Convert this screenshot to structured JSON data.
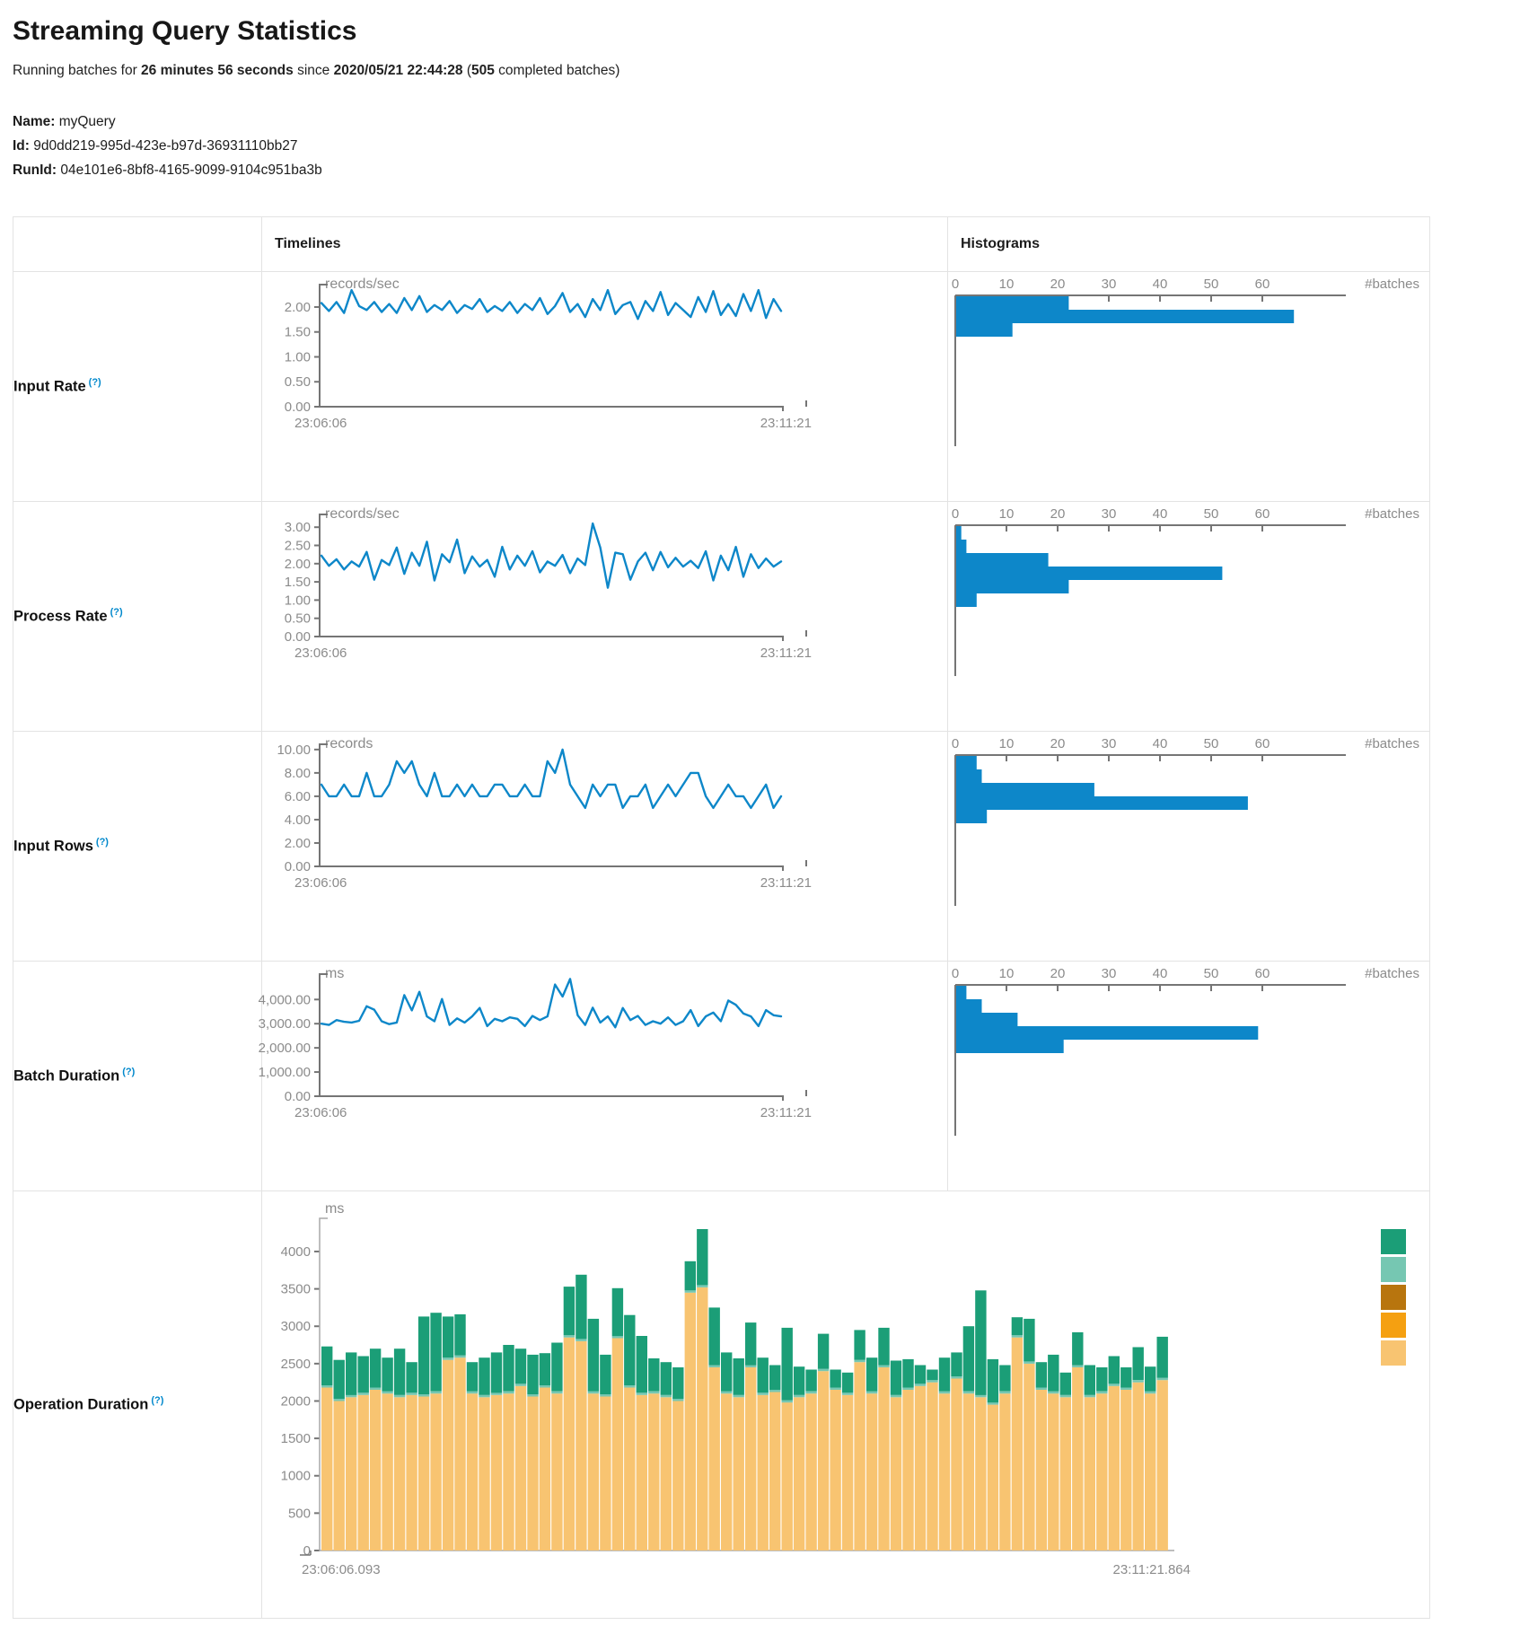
{
  "page": {
    "title": "Streaming Query Statistics",
    "subtitle": {
      "prefix": "Running batches for ",
      "duration": "26 minutes 56 seconds",
      "mid": " since ",
      "start_time": "2020/05/21 22:44:28",
      "paren_open": " (",
      "batch_count": "505",
      "suffix": " completed batches)"
    },
    "info": {
      "name_label": "Name:",
      "name_value": "myQuery",
      "id_label": "Id:",
      "id_value": "9d0dd219-995d-423e-b97d-36931110bb27",
      "runid_label": "RunId:",
      "runid_value": "04e101e6-8bf8-4165-9099-9104c951ba3b"
    }
  },
  "table": {
    "headers": {
      "timelines": "Timelines",
      "histograms": "Histograms"
    },
    "help_marker": "(?)",
    "rows": [
      {
        "label": "Input Rate"
      },
      {
        "label": "Process Rate"
      },
      {
        "label": "Input Rows"
      },
      {
        "label": "Batch Duration"
      },
      {
        "label": "Operation Duration"
      }
    ]
  },
  "colors": {
    "line_blue": "#0d87c9",
    "hist_blue": "#0d87c9",
    "axis_gray": "#757575",
    "label_gray": "#8b8b8b",
    "stack_green": "#1b9e77",
    "stack_light_teal": "#76c7b2",
    "stack_dark_gold": "#b8750e",
    "stack_orange": "#f5a011",
    "stack_tan": "#f8c471"
  },
  "chart_data": [
    {
      "name": "input_rate_timeline",
      "type": "line",
      "unit": "records/sec",
      "x_start": "23:06:06",
      "x_end": "23:11:21",
      "yticks": [
        {
          "label": "2.00",
          "value": 2
        },
        {
          "label": "1.50",
          "value": 1.5
        },
        {
          "label": "1.00",
          "value": 1
        },
        {
          "label": "0.50",
          "value": 0.5
        },
        {
          "label": "0.00",
          "value": 0
        }
      ],
      "ymax": 2.45,
      "values": [
        2.08,
        1.92,
        2.1,
        1.88,
        2.34,
        2.02,
        1.94,
        2.1,
        1.9,
        2.06,
        1.88,
        2.18,
        1.94,
        2.22,
        1.9,
        2.04,
        1.94,
        2.12,
        1.88,
        2.04,
        1.96,
        2.16,
        1.9,
        2.02,
        1.92,
        2.1,
        1.88,
        2.06,
        1.94,
        2.18,
        1.86,
        2.02,
        2.28,
        1.9,
        2.06,
        1.8,
        2.16,
        1.94,
        2.34,
        1.86,
        2.04,
        2.1,
        1.76,
        2.12,
        1.92,
        2.3,
        1.84,
        2.08,
        1.94,
        1.8,
        2.2,
        1.9,
        2.32,
        1.84,
        2.06,
        1.82,
        2.26,
        1.92,
        2.34,
        1.78,
        2.16,
        1.92
      ]
    },
    {
      "name": "input_rate_histogram",
      "type": "histogram",
      "xlabel": "#batches",
      "ticks": [
        0,
        10,
        20,
        30,
        40,
        50,
        60
      ],
      "values": [
        22,
        66,
        11
      ]
    },
    {
      "name": "process_rate_timeline",
      "type": "line",
      "unit": "records/sec",
      "x_start": "23:06:06",
      "x_end": "23:11:21",
      "yticks": [
        {
          "label": "3.00",
          "value": 3
        },
        {
          "label": "2.50",
          "value": 2.5
        },
        {
          "label": "2.00",
          "value": 2
        },
        {
          "label": "1.50",
          "value": 1.5
        },
        {
          "label": "1.00",
          "value": 1
        },
        {
          "label": "0.50",
          "value": 0.5
        },
        {
          "label": "0.00",
          "value": 0
        }
      ],
      "ymax": 3.35,
      "values": [
        2.22,
        1.94,
        2.12,
        1.84,
        2.06,
        1.92,
        2.32,
        1.56,
        2.1,
        1.96,
        2.44,
        1.72,
        2.3,
        1.94,
        2.6,
        1.54,
        2.26,
        2.04,
        2.66,
        1.74,
        2.2,
        1.92,
        2.1,
        1.64,
        2.46,
        1.84,
        2.22,
        1.94,
        2.34,
        1.76,
        2.06,
        1.94,
        2.24,
        1.74,
        2.14,
        1.96,
        3.1,
        2.44,
        1.34,
        2.3,
        2.26,
        1.56,
        2.06,
        2.3,
        1.82,
        2.32,
        1.9,
        2.16,
        1.92,
        2.08,
        1.88,
        2.34,
        1.54,
        2.22,
        1.82,
        2.46,
        1.64,
        2.26,
        1.88,
        2.14,
        1.92,
        2.06
      ]
    },
    {
      "name": "process_rate_histogram",
      "type": "histogram",
      "xlabel": "#batches",
      "ticks": [
        0,
        10,
        20,
        30,
        40,
        50,
        60
      ],
      "values": [
        1,
        2,
        18,
        52,
        22,
        4
      ]
    },
    {
      "name": "input_rows_timeline",
      "type": "line",
      "unit": "records",
      "x_start": "23:06:06",
      "x_end": "23:11:21",
      "yticks": [
        {
          "label": "10.00",
          "value": 10
        },
        {
          "label": "8.00",
          "value": 8
        },
        {
          "label": "6.00",
          "value": 6
        },
        {
          "label": "4.00",
          "value": 4
        },
        {
          "label": "2.00",
          "value": 2
        },
        {
          "label": "0.00",
          "value": 0
        }
      ],
      "ymax": 10.45,
      "values": [
        7,
        6,
        6,
        7,
        6,
        6,
        8,
        6,
        6,
        7,
        9,
        8,
        9,
        7,
        6,
        8,
        6,
        6,
        7,
        6,
        7,
        6,
        6,
        7,
        7,
        6,
        6,
        7,
        6,
        6,
        9,
        8,
        10,
        7,
        6,
        5,
        7,
        6,
        7,
        7,
        5,
        6,
        6,
        7,
        5,
        6,
        7,
        6,
        7,
        8,
        8,
        6,
        5,
        6,
        7,
        6,
        6,
        5,
        6,
        7,
        5,
        6
      ]
    },
    {
      "name": "input_rows_histogram",
      "type": "histogram",
      "xlabel": "#batches",
      "ticks": [
        0,
        10,
        20,
        30,
        40,
        50,
        60
      ],
      "values": [
        4,
        5,
        27,
        57,
        6
      ]
    },
    {
      "name": "batch_duration_timeline",
      "type": "line",
      "unit": "ms",
      "x_start": "23:06:06",
      "x_end": "23:11:21",
      "yticks": [
        {
          "label": "4,000.00",
          "value": 4000
        },
        {
          "label": "3,000.00",
          "value": 3000
        },
        {
          "label": "2,000.00",
          "value": 2000
        },
        {
          "label": "1,000.00",
          "value": 1000
        },
        {
          "label": "0.00",
          "value": 0
        }
      ],
      "ymax": 5050,
      "values": [
        3000,
        2950,
        3150,
        3080,
        3050,
        3120,
        3720,
        3580,
        3100,
        2980,
        3050,
        4180,
        3550,
        4320,
        3300,
        3100,
        4020,
        2950,
        3220,
        3050,
        3300,
        3650,
        2900,
        3200,
        3100,
        3260,
        3200,
        2900,
        3320,
        3150,
        3300,
        4620,
        4120,
        4850,
        3350,
        2950,
        3660,
        3050,
        3300,
        2850,
        3650,
        3150,
        3320,
        2950,
        3100,
        3000,
        3260,
        2950,
        3100,
        3560,
        2900,
        3300,
        3460,
        3100,
        3960,
        3780,
        3420,
        3300,
        2900,
        3560,
        3350,
        3300
      ]
    },
    {
      "name": "batch_duration_histogram",
      "type": "histogram",
      "xlabel": "#batches",
      "ticks": [
        0,
        10,
        20,
        30,
        40,
        50,
        60
      ],
      "values": [
        2,
        5,
        12,
        59,
        21
      ]
    },
    {
      "name": "operation_duration_chart",
      "type": "stacked-bar",
      "unit": "ms",
      "x_start": "23:06:06.093",
      "x_end": "23:11:21.864",
      "yticks": [
        {
          "label": "4000",
          "value": 4000
        },
        {
          "label": "3500",
          "value": 3500
        },
        {
          "label": "3000",
          "value": 3000
        },
        {
          "label": "2500",
          "value": 2500
        },
        {
          "label": "2000",
          "value": 2000
        },
        {
          "label": "1500",
          "value": 1500
        },
        {
          "label": "1000",
          "value": 1000
        },
        {
          "label": "500",
          "value": 500
        },
        {
          "label": "0",
          "value": 0
        }
      ],
      "ymax": 4420,
      "sliver_value": 30,
      "legend_colors": [
        "#1b9e77",
        "#76c7b2",
        "#b8750e",
        "#f5a011",
        "#f8c471"
      ],
      "series": [
        {
          "name": "bottom-tan",
          "values": [
            2180,
            2000,
            2050,
            2080,
            2150,
            2100,
            2050,
            2080,
            2060,
            2100,
            2550,
            2580,
            2100,
            2050,
            2080,
            2100,
            2200,
            2060,
            2180,
            2100,
            2850,
            2800,
            2100,
            2060,
            2840,
            2180,
            2080,
            2100,
            2050,
            2000,
            3450,
            3520,
            2450,
            2100,
            2050,
            2450,
            2080,
            2120,
            1980,
            2050,
            2100,
            2400,
            2150,
            2080,
            2520,
            2100,
            2450,
            2050,
            2150,
            2200,
            2250,
            2100,
            2300,
            2100,
            2050,
            1950,
            2100,
            2850,
            2500,
            2150,
            2100,
            2050,
            2450,
            2050,
            2100,
            2200,
            2150,
            2250,
            2100,
            2280
          ]
        },
        {
          "name": "total",
          "values": [
            2730,
            2550,
            2650,
            2600,
            2700,
            2580,
            2700,
            2520,
            3130,
            3180,
            3130,
            3160,
            2520,
            2580,
            2650,
            2750,
            2700,
            2620,
            2640,
            2780,
            3530,
            3690,
            3100,
            2620,
            3510,
            3150,
            2870,
            2570,
            2520,
            2450,
            3870,
            4300,
            3250,
            2650,
            2570,
            3050,
            2580,
            2480,
            2980,
            2460,
            2420,
            2900,
            2420,
            2380,
            2950,
            2580,
            2980,
            2540,
            2560,
            2480,
            2420,
            2580,
            2650,
            3000,
            3480,
            2560,
            2480,
            3120,
            3100,
            2520,
            2620,
            2380,
            2920,
            2480,
            2450,
            2600,
            2450,
            2720,
            2460,
            2860
          ]
        }
      ]
    }
  ]
}
